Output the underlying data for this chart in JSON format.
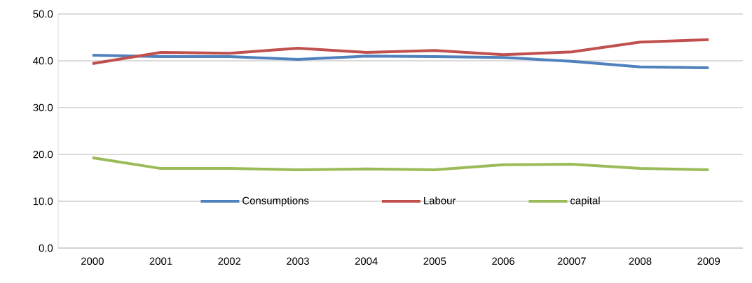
{
  "chart_data": {
    "type": "line",
    "categories": [
      "2000",
      "2001",
      "2002",
      "2003",
      "2004",
      "2005",
      "2006",
      "20007",
      "2008",
      "2009"
    ],
    "series": [
      {
        "name": "Consumptions",
        "color": "#4f81bd",
        "values": [
          41.2,
          40.9,
          40.9,
          40.3,
          41.0,
          40.9,
          40.7,
          39.9,
          38.7,
          38.5
        ]
      },
      {
        "name": "Labour",
        "color": "#c0504d",
        "values": [
          39.4,
          41.8,
          41.6,
          42.7,
          41.8,
          42.2,
          41.3,
          41.9,
          44.0,
          44.5
        ]
      },
      {
        "name": "capital",
        "color": "#9bbb59",
        "values": [
          19.3,
          17.0,
          17.0,
          16.7,
          16.9,
          16.7,
          17.8,
          17.9,
          17.0,
          16.7
        ]
      }
    ],
    "ylim": [
      0,
      50
    ],
    "yticks": [
      {
        "value": 0,
        "label": "0.0"
      },
      {
        "value": 10,
        "label": "10.0"
      },
      {
        "value": 20,
        "label": "20.0"
      },
      {
        "value": 30,
        "label": "30.0"
      },
      {
        "value": 40,
        "label": "40.0"
      },
      {
        "value": 50,
        "label": "50.0"
      }
    ],
    "grid": "y",
    "legend": "bottom",
    "marker": "none",
    "line_style": "solid"
  }
}
